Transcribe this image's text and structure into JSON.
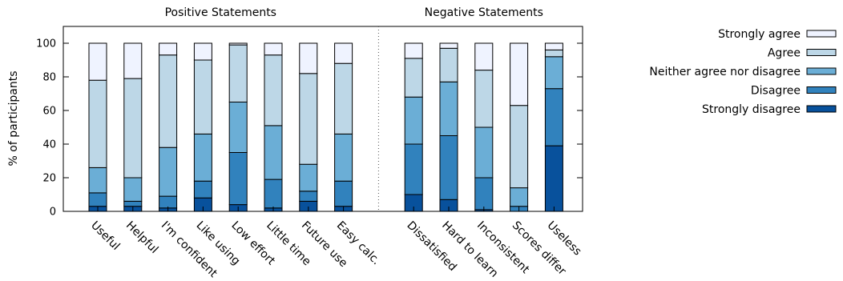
{
  "chart_data": {
    "type": "bar",
    "stacked": true,
    "ylabel": "% of participants",
    "ylim": [
      0,
      110
    ],
    "yticks": [
      0,
      20,
      40,
      60,
      80,
      100
    ],
    "grid": false,
    "legend_position": "top-right",
    "groups": [
      {
        "title": "Positive Statements",
        "categories": [
          "Useful",
          "Helpful",
          "I'm confident",
          "Like using",
          "Low effort",
          "Little time",
          "Future use",
          "Easy calc."
        ]
      },
      {
        "title": "Negative Statements",
        "categories": [
          "Dissatisfied",
          "Hard to learn",
          "Inconsistent",
          "Scores differ",
          "Useless"
        ]
      }
    ],
    "categories": [
      "Useful",
      "Helpful",
      "I'm confident",
      "Like using",
      "Low effort",
      "Little time",
      "Future use",
      "Easy calc.",
      "Dissatisfied",
      "Hard to learn",
      "Inconsistent",
      "Scores differ",
      "Useless"
    ],
    "series": [
      {
        "name": "Strongly disagree",
        "color": "#08519c",
        "values": [
          3,
          3,
          2,
          8,
          4,
          2,
          6,
          3,
          10,
          7,
          1,
          0,
          39
        ]
      },
      {
        "name": "Disagree",
        "color": "#3182bd",
        "values": [
          8,
          3,
          7,
          10,
          31,
          17,
          6,
          15,
          30,
          38,
          19,
          3,
          34
        ]
      },
      {
        "name": "Neither agree nor disagree",
        "color": "#6baed6",
        "values": [
          15,
          14,
          29,
          28,
          30,
          32,
          16,
          28,
          28,
          32,
          30,
          11,
          19
        ]
      },
      {
        "name": "Agree",
        "color": "#bdd7e7",
        "values": [
          52,
          59,
          55,
          44,
          34,
          42,
          54,
          42,
          23,
          20,
          34,
          49,
          4
        ]
      },
      {
        "name": "Strongly agree",
        "color": "#eff3ff",
        "values": [
          22,
          21,
          7,
          10,
          1,
          7,
          18,
          12,
          9,
          3,
          16,
          37,
          4
        ]
      }
    ]
  }
}
